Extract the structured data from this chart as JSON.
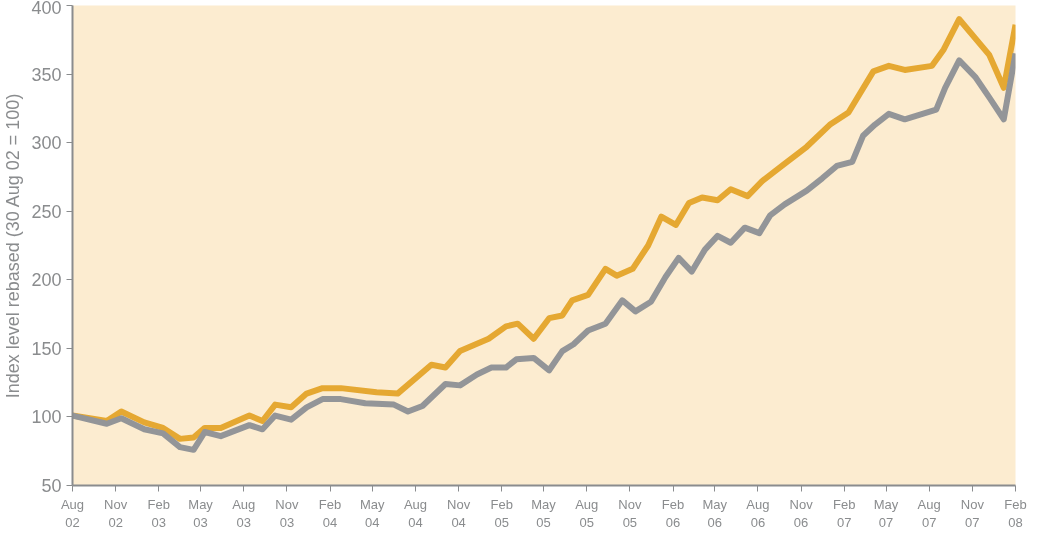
{
  "chart_data": {
    "type": "line",
    "ylabel": "Index level rebased (30 Aug 02 = 100)",
    "xlim": [
      "2002-08-01",
      "2008-02-01"
    ],
    "ylim": [
      50,
      400
    ],
    "yticks": [
      50,
      100,
      150,
      200,
      250,
      300,
      350,
      400
    ],
    "xticks": [
      {
        "value": "2002-08",
        "label": "Aug\n02"
      },
      {
        "value": "2002-11",
        "label": "Nov\n02"
      },
      {
        "value": "2003-02",
        "label": "Feb\n03"
      },
      {
        "value": "2003-05",
        "label": "May\n03"
      },
      {
        "value": "2003-08",
        "label": "Aug\n03"
      },
      {
        "value": "2003-11",
        "label": "Nov\n03"
      },
      {
        "value": "2004-02",
        "label": "Feb\n04"
      },
      {
        "value": "2004-05",
        "label": "May\n04"
      },
      {
        "value": "2004-08",
        "label": "Aug\n04"
      },
      {
        "value": "2004-11",
        "label": "Nov\n04"
      },
      {
        "value": "2005-02",
        "label": "Feb\n05"
      },
      {
        "value": "2005-05",
        "label": "May\n05"
      },
      {
        "value": "2005-08",
        "label": "Aug\n05"
      },
      {
        "value": "2005-11",
        "label": "Nov\n05"
      },
      {
        "value": "2006-02",
        "label": "Feb\n06"
      },
      {
        "value": "2006-05",
        "label": "May\n06"
      },
      {
        "value": "2006-08",
        "label": "Aug\n06"
      },
      {
        "value": "2006-11",
        "label": "Nov\n06"
      },
      {
        "value": "2007-02",
        "label": "Feb\n07"
      },
      {
        "value": "2007-05",
        "label": "May\n07"
      },
      {
        "value": "2007-08",
        "label": "Aug\n07"
      },
      {
        "value": "2007-11",
        "label": "Nov\n07"
      },
      {
        "value": "2008-02",
        "label": "Feb\n08"
      }
    ],
    "grid": false,
    "marker": "none",
    "line_style": "solid",
    "series": [
      {
        "color": "#e5a832",
        "x": [
          "2002-08-01",
          "2002-10-13",
          "2002-11-13",
          "2003-01-01",
          "2003-02-10",
          "2003-03-18",
          "2003-04-16",
          "2003-05-10",
          "2003-06-13",
          "2003-08-13",
          "2003-09-10",
          "2003-10-07",
          "2003-11-10",
          "2003-12-13",
          "2004-01-16",
          "2004-02-24",
          "2004-05-10",
          "2004-06-24",
          "2004-09-04",
          "2004-10-04",
          "2004-11-04",
          "2005-01-04",
          "2005-02-10",
          "2005-03-07",
          "2005-04-10",
          "2005-05-13",
          "2005-06-10",
          "2005-07-01",
          "2005-08-04",
          "2005-09-10",
          "2005-10-04",
          "2005-11-07",
          "2005-12-10",
          "2006-01-07",
          "2006-02-07",
          "2006-03-07",
          "2006-04-04",
          "2006-05-07",
          "2006-06-04",
          "2006-07-10",
          "2006-08-10",
          "2006-09-21",
          "2006-11-13",
          "2007-01-01",
          "2007-02-10",
          "2007-04-04",
          "2007-05-07",
          "2007-06-10",
          "2007-08-07",
          "2007-09-01",
          "2007-10-04",
          "2007-12-07",
          "2008-01-07",
          "2008-02-01"
        ],
        "values": [
          101,
          97,
          104,
          96,
          92,
          84,
          85,
          92,
          92,
          101,
          97,
          109,
          107,
          117,
          121,
          121,
          118,
          117,
          138,
          136,
          148,
          157,
          166,
          168,
          157,
          172,
          174,
          185,
          189,
          208,
          203,
          208,
          225,
          246,
          240,
          256,
          260,
          258,
          266,
          261,
          272,
          283,
          297,
          313,
          322,
          352,
          356,
          353,
          356,
          368,
          390,
          364,
          340,
          386
        ]
      },
      {
        "color": "#939598",
        "x": [
          "2002-08-01",
          "2002-10-13",
          "2002-11-13",
          "2003-01-01",
          "2003-02-10",
          "2003-03-18",
          "2003-04-16",
          "2003-05-10",
          "2003-06-13",
          "2003-08-13",
          "2003-09-10",
          "2003-10-07",
          "2003-11-10",
          "2003-12-13",
          "2004-01-16",
          "2004-02-24",
          "2004-04-16",
          "2004-06-16",
          "2004-07-16",
          "2004-08-16",
          "2004-10-04",
          "2004-11-04",
          "2004-12-10",
          "2005-01-10",
          "2005-02-10",
          "2005-03-04",
          "2005-04-10",
          "2005-05-13",
          "2005-06-10",
          "2005-07-04",
          "2005-08-04",
          "2005-09-10",
          "2005-10-16",
          "2005-11-13",
          "2005-12-16",
          "2006-01-16",
          "2006-02-13",
          "2006-03-13",
          "2006-04-10",
          "2006-05-07",
          "2006-06-04",
          "2006-07-04",
          "2006-08-04",
          "2006-08-27",
          "2006-09-27",
          "2006-11-13",
          "2006-12-16",
          "2007-01-16",
          "2007-02-18",
          "2007-03-13",
          "2007-04-07",
          "2007-05-07",
          "2007-06-10",
          "2007-08-16",
          "2007-09-04",
          "2007-10-04",
          "2007-11-07",
          "2007-12-07",
          "2008-01-07",
          "2008-02-01"
        ],
        "values": [
          101,
          95,
          99,
          91,
          88,
          78,
          76,
          89,
          86,
          94,
          91,
          101,
          98,
          107,
          113,
          113,
          110,
          109,
          104,
          108,
          124,
          123,
          131,
          136,
          136,
          142,
          143,
          134,
          148,
          153,
          163,
          168,
          185,
          177,
          184,
          202,
          216,
          206,
          222,
          232,
          227,
          238,
          234,
          247,
          255,
          265,
          274,
          283,
          286,
          305,
          313,
          321,
          317,
          324,
          340,
          360,
          348,
          333,
          317,
          365
        ]
      }
    ]
  }
}
